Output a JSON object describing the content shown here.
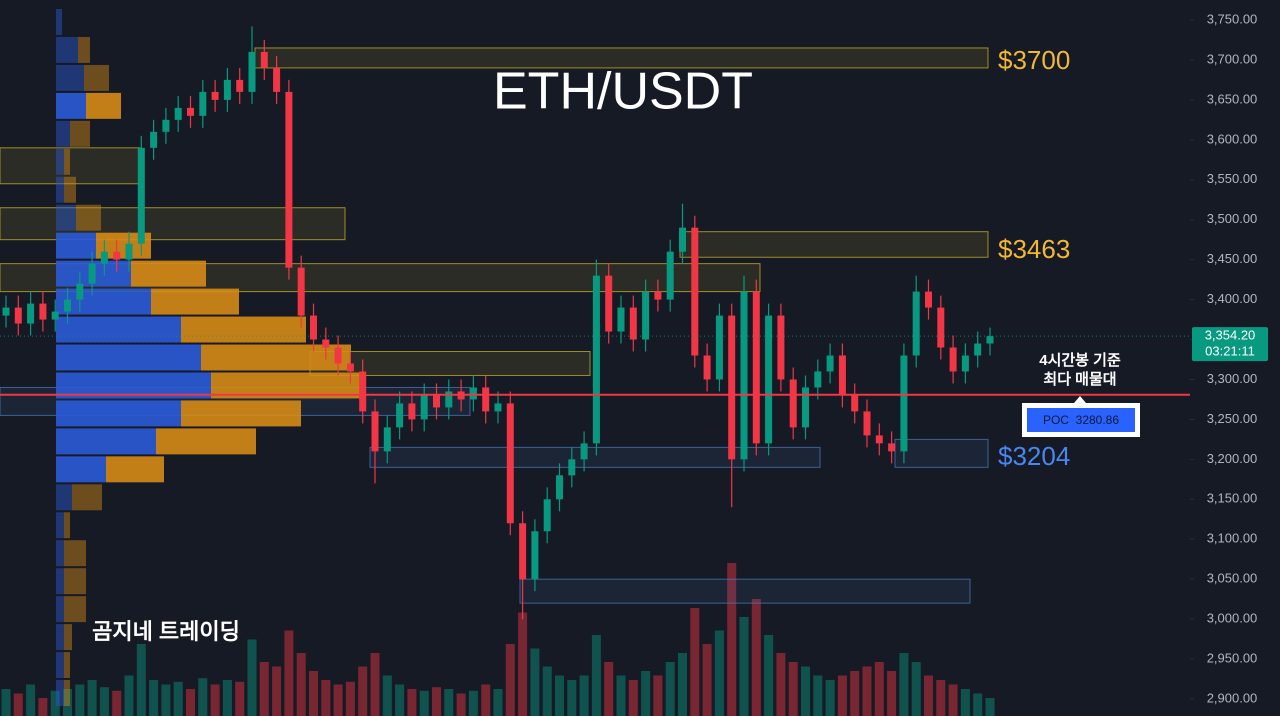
{
  "chart_data": {
    "type": "candlestick",
    "title": "ETH/USDT",
    "watermark": "곰지네 트레이딩",
    "annotation": [
      "4시간봉 기준",
      "최다 매물대"
    ],
    "ylim": [
      2890,
      3765
    ],
    "yticks": [
      {
        "value": 2900,
        "label": "2,900.00"
      },
      {
        "value": 2950,
        "label": "2,950.00"
      },
      {
        "value": 3000,
        "label": "3,000.00"
      },
      {
        "value": 3050,
        "label": "3,050.00"
      },
      {
        "value": 3100,
        "label": "3,100.00"
      },
      {
        "value": 3150,
        "label": "3,150.00"
      },
      {
        "value": 3200,
        "label": "3,200.00"
      },
      {
        "value": 3250,
        "label": "3,250.00"
      },
      {
        "value": 3300,
        "label": "3,300.00"
      },
      {
        "value": 3350,
        "label": "3,350.00"
      },
      {
        "value": 3400,
        "label": "3,400.00"
      },
      {
        "value": 3450,
        "label": "3,450.00"
      },
      {
        "value": 3500,
        "label": "3,500.00"
      },
      {
        "value": 3550,
        "label": "3,550.00"
      },
      {
        "value": 3600,
        "label": "3,600.00"
      },
      {
        "value": 3650,
        "label": "3,650.00"
      },
      {
        "value": 3700,
        "label": "3,700.00"
      },
      {
        "value": 3750,
        "label": "3,750.00"
      }
    ],
    "grid": false,
    "up_color": "#089981",
    "down_color": "#f23645",
    "open": [
      3380,
      3390,
      3370,
      3395,
      3375,
      3385,
      3400,
      3420,
      3445,
      3460,
      3450,
      3470,
      3590,
      3610,
      3625,
      3640,
      3630,
      3660,
      3650,
      3675,
      3660,
      3710,
      3690,
      3660,
      3440,
      3380,
      3350,
      3340,
      3320,
      3310,
      3260,
      3210,
      3240,
      3270,
      3250,
      3280,
      3265,
      3285,
      3275,
      3290,
      3260,
      3270,
      3120,
      3050,
      3110,
      3150,
      3180,
      3200,
      3220,
      3430,
      3360,
      3390,
      3350,
      3410,
      3400,
      3460,
      3490,
      3330,
      3300,
      3380,
      3200,
      3410,
      3220,
      3380,
      3300,
      3240,
      3290,
      3310,
      3330,
      3280,
      3260,
      3230,
      3220,
      3210,
      3330,
      3410,
      3390,
      3340,
      3310,
      3330,
      3345
    ],
    "high": [
      3405,
      3405,
      3410,
      3410,
      3400,
      3415,
      3435,
      3460,
      3475,
      3475,
      3485,
      3605,
      3625,
      3640,
      3655,
      3655,
      3675,
      3675,
      3690,
      3690,
      3742,
      3725,
      3705,
      3675,
      3455,
      3395,
      3365,
      3355,
      3335,
      3325,
      3275,
      3255,
      3285,
      3285,
      3295,
      3295,
      3300,
      3300,
      3305,
      3305,
      3285,
      3285,
      3135,
      3125,
      3165,
      3195,
      3215,
      3235,
      3450,
      3445,
      3405,
      3405,
      3425,
      3425,
      3475,
      3520,
      3505,
      3345,
      3395,
      3395,
      3430,
      3425,
      3395,
      3395,
      3315,
      3305,
      3325,
      3345,
      3345,
      3295,
      3275,
      3245,
      3235,
      3345,
      3430,
      3425,
      3405,
      3355,
      3345,
      3360,
      3365
    ],
    "low": [
      3365,
      3355,
      3355,
      3360,
      3360,
      3370,
      3385,
      3405,
      3430,
      3435,
      3435,
      3455,
      3575,
      3595,
      3610,
      3615,
      3615,
      3635,
      3635,
      3645,
      3645,
      3675,
      3645,
      3425,
      3365,
      3335,
      3325,
      3305,
      3295,
      3245,
      3170,
      3195,
      3225,
      3235,
      3235,
      3250,
      3250,
      3260,
      3260,
      3245,
      3245,
      3105,
      3000,
      3035,
      3095,
      3135,
      3165,
      3185,
      3205,
      3345,
      3345,
      3335,
      3335,
      3385,
      3385,
      3445,
      3315,
      3285,
      3285,
      3140,
      3185,
      3205,
      3205,
      3285,
      3225,
      3225,
      3275,
      3295,
      3265,
      3245,
      3215,
      3205,
      3195,
      3195,
      3315,
      3375,
      3325,
      3295,
      3295,
      3315,
      3330
    ],
    "close": [
      3390,
      3370,
      3395,
      3375,
      3385,
      3400,
      3420,
      3445,
      3460,
      3450,
      3470,
      3590,
      3610,
      3625,
      3640,
      3630,
      3660,
      3650,
      3675,
      3660,
      3710,
      3690,
      3660,
      3440,
      3380,
      3350,
      3340,
      3320,
      3310,
      3260,
      3210,
      3240,
      3270,
      3250,
      3280,
      3265,
      3285,
      3275,
      3290,
      3260,
      3270,
      3120,
      3050,
      3110,
      3150,
      3180,
      3200,
      3220,
      3430,
      3360,
      3390,
      3350,
      3410,
      3400,
      3460,
      3490,
      3330,
      3300,
      3380,
      3200,
      3410,
      3220,
      3380,
      3300,
      3240,
      3290,
      3310,
      3330,
      3280,
      3260,
      3230,
      3220,
      3210,
      3330,
      3410,
      3390,
      3340,
      3310,
      3330,
      3345,
      3354.2
    ],
    "volume": [
      30,
      25,
      35,
      20,
      28,
      30,
      35,
      40,
      32,
      28,
      45,
      80,
      40,
      35,
      38,
      30,
      42,
      35,
      40,
      38,
      85,
      60,
      55,
      95,
      70,
      50,
      40,
      35,
      38,
      55,
      70,
      45,
      35,
      30,
      28,
      32,
      30,
      25,
      28,
      35,
      30,
      80,
      115,
      75,
      55,
      45,
      40,
      45,
      90,
      60,
      45,
      40,
      50,
      45,
      60,
      70,
      120,
      80,
      95,
      170,
      110,
      130,
      90,
      70,
      60,
      55,
      45,
      40,
      45,
      50,
      55,
      60,
      50,
      70,
      60,
      45,
      40,
      35,
      30,
      25,
      20
    ],
    "volume_profile": {
      "bins": [
        2890,
        2925,
        2960,
        2995,
        3030,
        3065,
        3100,
        3135,
        3170,
        3205,
        3240,
        3275,
        3310,
        3345,
        3380,
        3415,
        3450,
        3485,
        3520,
        3555,
        3590,
        3625,
        3660,
        3695,
        3730,
        3765
      ],
      "buy": [
        8,
        8,
        8,
        8,
        8,
        8,
        8,
        16,
        50,
        100,
        125,
        155,
        145,
        125,
        95,
        75,
        40,
        20,
        8,
        8,
        14,
        30,
        28,
        22,
        6
      ],
      "sell": [
        6,
        6,
        8,
        22,
        22,
        22,
        6,
        30,
        58,
        100,
        120,
        155,
        150,
        125,
        88,
        75,
        55,
        25,
        12,
        6,
        20,
        35,
        25,
        12,
        0
      ],
      "buy_color": "#2a5bd7",
      "sell_color": "#d68b16"
    },
    "zones": [
      {
        "low": 3690,
        "high": 3715,
        "color": "#c9b12a"
      },
      {
        "low": 3453,
        "high": 3485,
        "color": "#c9b12a"
      },
      {
        "low": 3190,
        "high": 3225,
        "color": "#4a78b8"
      },
      {
        "low": 3545,
        "high": 3590,
        "color": "#c9b12a"
      },
      {
        "low": 3475,
        "high": 3515,
        "color": "#c9b12a"
      },
      {
        "low": 3410,
        "high": 3445,
        "color": "#c9b12a"
      },
      {
        "low": 3305,
        "high": 3335,
        "color": "#c9b12a"
      },
      {
        "low": 3190,
        "high": 3215,
        "color": "#4a78b8"
      },
      {
        "low": 3020,
        "high": 3050,
        "color": "#4a78b8"
      },
      {
        "low": 3255,
        "high": 3290,
        "color": "#4a78b8"
      }
    ],
    "levels": [
      {
        "value": 3700,
        "label": "$3700",
        "color": "#f2b833"
      },
      {
        "value": 3463,
        "label": "$3463",
        "color": "#f2b833"
      },
      {
        "value": 3204,
        "label": "$3204",
        "color": "#4a86f0"
      }
    ],
    "poc": {
      "value": 3280.86,
      "label": "POC  3280.86",
      "color": "#f23645"
    },
    "last_price": {
      "value": 3354.2,
      "label": "3,354.20",
      "countdown": "03:21:11",
      "color": "#089981"
    }
  }
}
